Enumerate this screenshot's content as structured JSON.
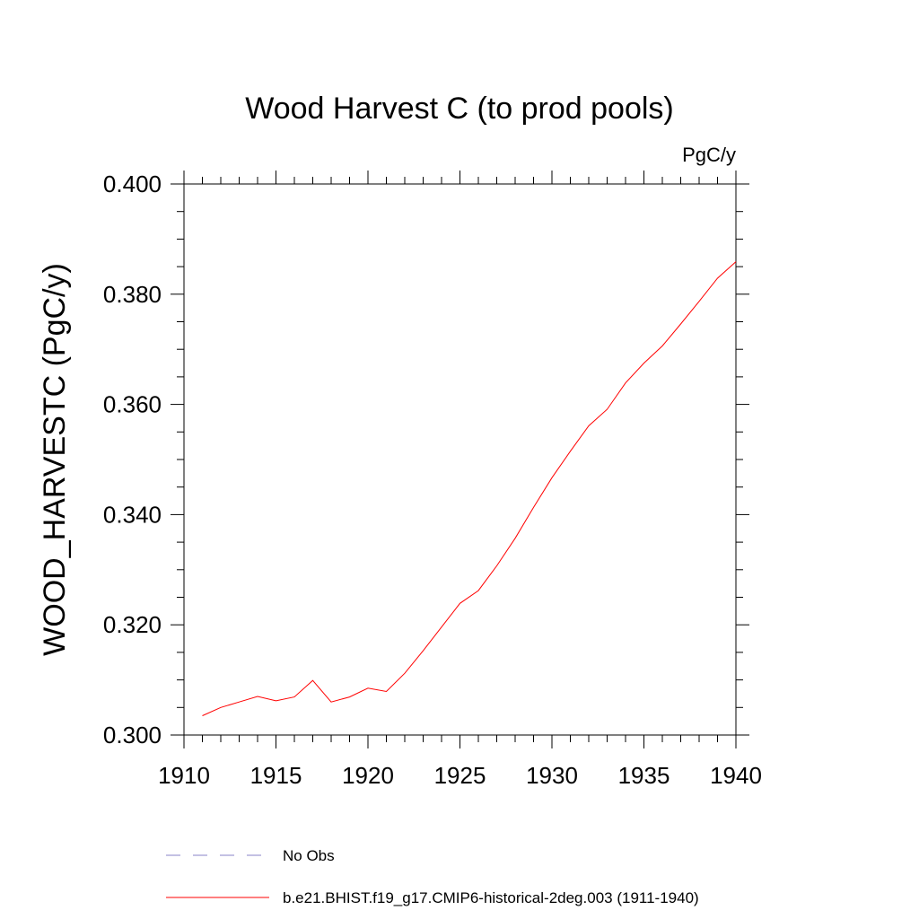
{
  "chart_data": {
    "type": "line",
    "title": "Wood Harvest C (to prod pools)",
    "units": "PgC/y",
    "xlabel": "",
    "ylabel": "WOOD_HARVESTC  (PgC/y)",
    "xlim": [
      1910,
      1940
    ],
    "ylim": [
      0.3,
      0.4
    ],
    "xticks": [
      1910,
      1915,
      1920,
      1925,
      1930,
      1935,
      1940
    ],
    "xtick_labels": [
      "1910",
      "1915",
      "1920",
      "1925",
      "1930",
      "1935",
      "1940"
    ],
    "yticks": [
      0.3,
      0.32,
      0.34,
      0.36,
      0.38,
      0.4
    ],
    "ytick_labels": [
      "0.300",
      "0.320",
      "0.340",
      "0.360",
      "0.380",
      "0.400"
    ],
    "grid": false,
    "legend_position": "bottom",
    "series": [
      {
        "name": "b.e21.BHIST.f19_g17.CMIP6-historical-2deg.003 (1911-1940)",
        "color": "#ff0000",
        "style": "solid",
        "x": [
          1911,
          1912,
          1913,
          1914,
          1915,
          1916,
          1917,
          1918,
          1919,
          1920,
          1921,
          1922,
          1923,
          1924,
          1925,
          1926,
          1927,
          1928,
          1929,
          1930,
          1931,
          1932,
          1933,
          1934,
          1935,
          1936,
          1937,
          1938,
          1939,
          1940
        ],
        "y": [
          0.3035,
          0.305,
          0.306,
          0.307,
          0.3062,
          0.3069,
          0.3099,
          0.306,
          0.3069,
          0.3085,
          0.3079,
          0.3112,
          0.3153,
          0.3196,
          0.3239,
          0.3262,
          0.3307,
          0.3357,
          0.3413,
          0.3467,
          0.3515,
          0.3561,
          0.3591,
          0.3639,
          0.3675,
          0.3706,
          0.3746,
          0.3787,
          0.3829,
          0.3859
        ]
      }
    ],
    "legend": [
      {
        "label": "No Obs",
        "color": "#8a83c8",
        "style": "dashed"
      },
      {
        "label": "b.e21.BHIST.f19_g17.CMIP6-historical-2deg.003 (1911-1940)",
        "color": "#ff0000",
        "style": "solid"
      }
    ]
  }
}
